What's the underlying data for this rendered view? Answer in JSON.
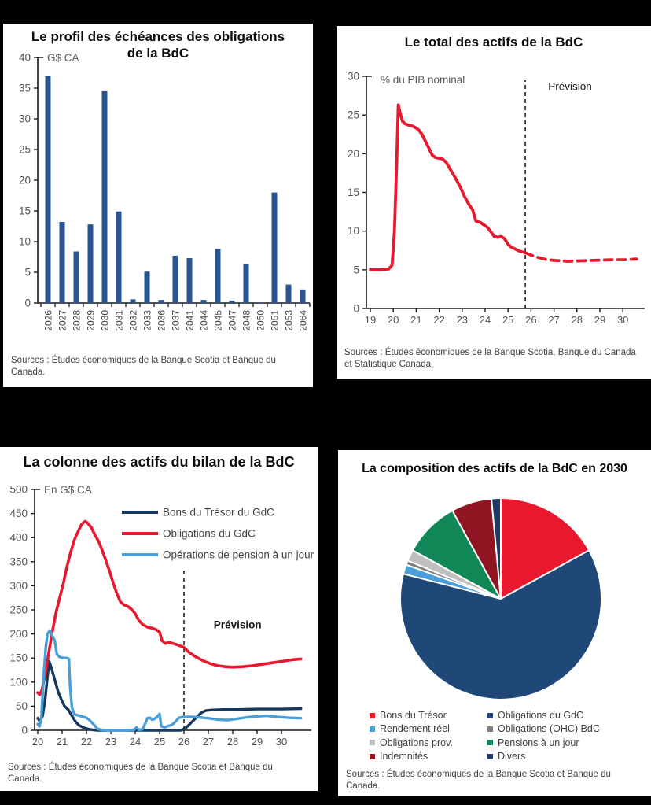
{
  "page": {
    "background": "#000000"
  },
  "colors": {
    "bar_navy": "#2a5490",
    "line_red": "#e8192e",
    "line_navy": "#17375d",
    "line_lightblue": "#4a9fd8",
    "axis": "#1a1a1a",
    "tick_label": "#545454",
    "unit_label": "#595959",
    "source_text": "#3f3f3f"
  },
  "chart_data": [
    {
      "type": "bar",
      "title": "Le profil des échéances des obligations de la BdC",
      "unit_label": "G$ CA",
      "source": "Sources : Études économiques de la Banque Scotia et Banque du Canada.",
      "categories": [
        "2026",
        "2027",
        "2028",
        "2029",
        "2030",
        "2031",
        "2032",
        "2033",
        "2036",
        "2037",
        "2041",
        "2044",
        "2045",
        "2047",
        "2048",
        "2050",
        "2051",
        "2053",
        "2064"
      ],
      "values": [
        37,
        13.2,
        8.4,
        12.8,
        34.5,
        14.9,
        0.6,
        5.1,
        0.5,
        7.7,
        7.3,
        0.5,
        8.8,
        0.4,
        6.3,
        0.1,
        18,
        3,
        2.2
      ],
      "ylim": [
        0,
        40
      ],
      "yticks": [
        0,
        5,
        10,
        15,
        20,
        25,
        30,
        35,
        40
      ],
      "bar_color": "#2a5490",
      "grid": false
    },
    {
      "type": "line",
      "title": "Le total des actifs de la BdC",
      "unit_label": "% du PIB nominal",
      "source": "Sources : Études économiques de la Banque Scotia, Banque du Canada et Statistique Canada.",
      "xlim": [
        19,
        30.7
      ],
      "ylim": [
        0,
        30
      ],
      "yticks": [
        0,
        5,
        10,
        15,
        20,
        25,
        30
      ],
      "xticks": [
        19,
        20,
        21,
        22,
        23,
        24,
        25,
        26,
        27,
        28,
        29,
        30
      ],
      "forecast": {
        "x": 25.75,
        "label": "Prévision",
        "bold": false,
        "label_x": 27.7,
        "label_y": 28.2
      },
      "legend_position": "none",
      "grid": false,
      "series": [
        {
          "name": "Total des actifs (% du PIB nominal)",
          "color": "#e8192e",
          "width": 3.8,
          "dash_after": 25.75,
          "points": [
            [
              19,
              5
            ],
            [
              19.4,
              5
            ],
            [
              19.8,
              5.1
            ],
            [
              19.95,
              5.6
            ],
            [
              20.05,
              10
            ],
            [
              20.15,
              19
            ],
            [
              20.22,
              26.3
            ],
            [
              20.3,
              25.2
            ],
            [
              20.4,
              24.2
            ],
            [
              20.5,
              23.9
            ],
            [
              20.65,
              23.7
            ],
            [
              20.8,
              23.6
            ],
            [
              20.95,
              23.4
            ],
            [
              21.1,
              23.1
            ],
            [
              21.25,
              22.5
            ],
            [
              21.4,
              21.6
            ],
            [
              21.55,
              20.7
            ],
            [
              21.7,
              19.8
            ],
            [
              21.85,
              19.5
            ],
            [
              22,
              19.4
            ],
            [
              22.15,
              19.3
            ],
            [
              22.3,
              18.9
            ],
            [
              22.5,
              17.9
            ],
            [
              22.7,
              16.9
            ],
            [
              22.9,
              15.8
            ],
            [
              23.1,
              14.5
            ],
            [
              23.3,
              13.4
            ],
            [
              23.45,
              12.8
            ],
            [
              23.6,
              11.3
            ],
            [
              23.8,
              11.1
            ],
            [
              23.95,
              10.8
            ],
            [
              24.1,
              10.5
            ],
            [
              24.25,
              9.9
            ],
            [
              24.4,
              9.3
            ],
            [
              24.55,
              9.2
            ],
            [
              24.7,
              9.3
            ],
            [
              24.85,
              9
            ],
            [
              25,
              8.3
            ],
            [
              25.15,
              7.9
            ],
            [
              25.3,
              7.7
            ],
            [
              25.5,
              7.4
            ],
            [
              25.75,
              7.2
            ],
            [
              26,
              6.9
            ],
            [
              26.3,
              6.6
            ],
            [
              26.7,
              6.3
            ],
            [
              27.1,
              6.2
            ],
            [
              27.6,
              6.1
            ],
            [
              28.1,
              6.15
            ],
            [
              28.6,
              6.2
            ],
            [
              29.1,
              6.25
            ],
            [
              29.6,
              6.3
            ],
            [
              30.1,
              6.3
            ],
            [
              30.6,
              6.4
            ]
          ]
        }
      ]
    },
    {
      "type": "line",
      "title": "La colonne des actifs du bilan de la BdC",
      "unit_label": "En G$ CA",
      "source": "Sources : Études économiques de la Banque Scotia et Banque du Canada.",
      "xlim": [
        20,
        30.8
      ],
      "ylim": [
        0,
        500
      ],
      "yticks": [
        0,
        50,
        100,
        150,
        200,
        250,
        300,
        350,
        400,
        450,
        500
      ],
      "xticks": [
        20,
        21,
        22,
        23,
        24,
        25,
        26,
        27,
        28,
        29,
        30
      ],
      "forecast": {
        "x": 26,
        "label": "Prévision",
        "bold": true,
        "label_x": 28.2,
        "label_y": 212
      },
      "legend_position": "inside-top-right",
      "grid": false,
      "series": [
        {
          "name": "Bons du Trésor du GdC",
          "color": "#17375d",
          "width": 3.4,
          "dash_after": null,
          "points": [
            [
              20,
              25
            ],
            [
              20.1,
              18
            ],
            [
              20.2,
              30
            ],
            [
              20.3,
              62
            ],
            [
              20.4,
              112
            ],
            [
              20.47,
              143
            ],
            [
              20.55,
              131
            ],
            [
              20.65,
              114
            ],
            [
              20.75,
              95
            ],
            [
              20.85,
              78
            ],
            [
              21,
              60
            ],
            [
              21.1,
              50
            ],
            [
              21.25,
              43
            ],
            [
              21.4,
              30
            ],
            [
              21.55,
              18
            ],
            [
              21.7,
              10
            ],
            [
              21.9,
              5
            ],
            [
              22.1,
              2
            ],
            [
              22.4,
              0
            ],
            [
              23,
              0
            ],
            [
              24,
              0
            ],
            [
              25,
              0
            ],
            [
              25.9,
              0
            ],
            [
              26.1,
              6
            ],
            [
              26.3,
              16
            ],
            [
              26.5,
              26
            ],
            [
              26.7,
              36
            ],
            [
              26.9,
              41
            ],
            [
              27.1,
              42
            ],
            [
              27.6,
              43
            ],
            [
              28.2,
              43
            ],
            [
              29,
              44
            ],
            [
              30,
              44
            ],
            [
              30.8,
              45
            ]
          ]
        },
        {
          "name": "Obligations du GdC",
          "color": "#e8192e",
          "width": 3.6,
          "dash_after": null,
          "points": [
            [
              20,
              78
            ],
            [
              20.08,
              74
            ],
            [
              20.18,
              85
            ],
            [
              20.3,
              115
            ],
            [
              20.45,
              160
            ],
            [
              20.6,
              205
            ],
            [
              20.75,
              245
            ],
            [
              20.9,
              275
            ],
            [
              21.05,
              305
            ],
            [
              21.2,
              340
            ],
            [
              21.35,
              370
            ],
            [
              21.5,
              395
            ],
            [
              21.65,
              412
            ],
            [
              21.8,
              428
            ],
            [
              21.95,
              434
            ],
            [
              22.05,
              430
            ],
            [
              22.2,
              421
            ],
            [
              22.35,
              405
            ],
            [
              22.5,
              392
            ],
            [
              22.65,
              373
            ],
            [
              22.8,
              352
            ],
            [
              22.95,
              330
            ],
            [
              23.1,
              305
            ],
            [
              23.25,
              283
            ],
            [
              23.4,
              266
            ],
            [
              23.55,
              260
            ],
            [
              23.7,
              257
            ],
            [
              23.85,
              251
            ],
            [
              24,
              242
            ],
            [
              24.15,
              228
            ],
            [
              24.3,
              220
            ],
            [
              24.5,
              214
            ],
            [
              24.7,
              212
            ],
            [
              24.85,
              209
            ],
            [
              25,
              204
            ],
            [
              25.1,
              186
            ],
            [
              25.25,
              180
            ],
            [
              25.4,
              183
            ],
            [
              25.55,
              180
            ],
            [
              25.75,
              177
            ],
            [
              26,
              172
            ],
            [
              26.2,
              162
            ],
            [
              26.5,
              152
            ],
            [
              26.8,
              144
            ],
            [
              27.1,
              138
            ],
            [
              27.4,
              134
            ],
            [
              27.7,
              132
            ],
            [
              28,
              131
            ],
            [
              28.4,
              132
            ],
            [
              28.8,
              134
            ],
            [
              29.2,
              137
            ],
            [
              29.6,
              140
            ],
            [
              30,
              143
            ],
            [
              30.4,
              146
            ],
            [
              30.8,
              148
            ]
          ]
        },
        {
          "name": "Opérations de pension à un jour",
          "color": "#4a9fd8",
          "width": 3.4,
          "dash_after": null,
          "points": [
            [
              20,
              13
            ],
            [
              20.07,
              8
            ],
            [
              20.15,
              25
            ],
            [
              20.25,
              120
            ],
            [
              20.33,
              172
            ],
            [
              20.4,
              200
            ],
            [
              20.5,
              207
            ],
            [
              20.6,
              196
            ],
            [
              20.7,
              186
            ],
            [
              20.78,
              158
            ],
            [
              20.9,
              152
            ],
            [
              21.05,
              150
            ],
            [
              21.2,
              150
            ],
            [
              21.28,
              148
            ],
            [
              21.33,
              90
            ],
            [
              21.4,
              48
            ],
            [
              21.5,
              33
            ],
            [
              21.65,
              31
            ],
            [
              21.8,
              29
            ],
            [
              22,
              26
            ],
            [
              22.15,
              20
            ],
            [
              22.3,
              12
            ],
            [
              22.45,
              3
            ],
            [
              22.6,
              1
            ],
            [
              23,
              0
            ],
            [
              23.5,
              0
            ],
            [
              23.95,
              1
            ],
            [
              24.05,
              6
            ],
            [
              24.15,
              1
            ],
            [
              24.3,
              2
            ],
            [
              24.42,
              15
            ],
            [
              24.5,
              25
            ],
            [
              24.6,
              26
            ],
            [
              24.7,
              22
            ],
            [
              24.8,
              24
            ],
            [
              24.9,
              28
            ],
            [
              25,
              34
            ],
            [
              25.07,
              8
            ],
            [
              25.2,
              6
            ],
            [
              25.35,
              9
            ],
            [
              25.5,
              11
            ],
            [
              25.65,
              18
            ],
            [
              25.8,
              26
            ],
            [
              26,
              28
            ],
            [
              26.3,
              28
            ],
            [
              26.6,
              27
            ],
            [
              27,
              25
            ],
            [
              27.4,
              22
            ],
            [
              27.8,
              21
            ],
            [
              28.2,
              24
            ],
            [
              28.6,
              27
            ],
            [
              29,
              29
            ],
            [
              29.4,
              30
            ],
            [
              29.8,
              28
            ],
            [
              30.3,
              26
            ],
            [
              30.8,
              25
            ]
          ]
        }
      ]
    },
    {
      "type": "pie",
      "title": "La composition des actifs de la BdC en 2030",
      "source": "Sources : Études économiques de la Banque Scotia et Banque du Canada.",
      "start_angle_deg": -90,
      "direction": "clockwise",
      "legend_position": "bottom-two-columns",
      "slices": [
        {
          "label": "Bons du Trésor",
          "value": 17,
          "color": "#e8192e"
        },
        {
          "label": "Obligations du GdC",
          "value": 62,
          "color": "#1f4878"
        },
        {
          "label": "Rendement réel",
          "value": 1.5,
          "color": "#4a9fd8"
        },
        {
          "label": "Obligations (OHC) BdC",
          "value": 0.7,
          "color": "#7f7f7f"
        },
        {
          "label": "Obligations prov.",
          "value": 1.8,
          "color": "#bfbfbf"
        },
        {
          "label": "Pensions à un jour",
          "value": 9,
          "color": "#0f8757"
        },
        {
          "label": "Indemnités",
          "value": 6.5,
          "color": "#8e1521"
        },
        {
          "label": "Divers",
          "value": 1.5,
          "color": "#203864"
        }
      ]
    }
  ]
}
